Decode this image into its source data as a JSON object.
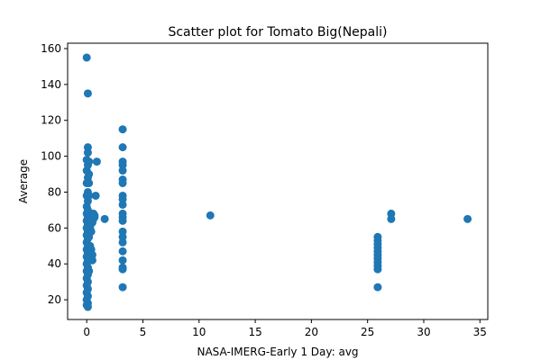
{
  "chart_data": {
    "type": "scatter",
    "title": "Scatter plot for Tomato Big(Nepali)",
    "xlabel": "NASA-IMERG-Early 1 Day: avg",
    "ylabel": "Average",
    "xlim": [
      -1.7,
      35.7
    ],
    "ylim": [
      9,
      163
    ],
    "xticks": [
      0,
      5,
      10,
      15,
      20,
      25,
      30,
      35
    ],
    "yticks": [
      20,
      40,
      60,
      80,
      100,
      120,
      140,
      160
    ],
    "grid": false,
    "marker_color": "#1f77b4",
    "points": [
      [
        0.0,
        155
      ],
      [
        0.1,
        135
      ],
      [
        0.1,
        105
      ],
      [
        0.1,
        102
      ],
      [
        0.0,
        98
      ],
      [
        0.1,
        95
      ],
      [
        0.0,
        92
      ],
      [
        0.1,
        88
      ],
      [
        0.0,
        85
      ],
      [
        0.1,
        80
      ],
      [
        0.0,
        78
      ],
      [
        0.1,
        75
      ],
      [
        0.0,
        72
      ],
      [
        0.1,
        70
      ],
      [
        0.0,
        68
      ],
      [
        0.1,
        66
      ],
      [
        0.0,
        64
      ],
      [
        0.1,
        62
      ],
      [
        0.0,
        60
      ],
      [
        0.1,
        58
      ],
      [
        0.0,
        56
      ],
      [
        0.1,
        54
      ],
      [
        0.0,
        52
      ],
      [
        0.1,
        50
      ],
      [
        0.0,
        48
      ],
      [
        0.1,
        46
      ],
      [
        0.0,
        44
      ],
      [
        0.1,
        42
      ],
      [
        0.0,
        40
      ],
      [
        0.1,
        38
      ],
      [
        0.0,
        36
      ],
      [
        0.1,
        34
      ],
      [
        0.0,
        32
      ],
      [
        0.1,
        30
      ],
      [
        0.0,
        28
      ],
      [
        0.1,
        26
      ],
      [
        0.0,
        24
      ],
      [
        0.1,
        22
      ],
      [
        0.0,
        20
      ],
      [
        0.1,
        18
      ],
      [
        0.0,
        17
      ],
      [
        0.1,
        16
      ],
      [
        0.2,
        97
      ],
      [
        0.2,
        90
      ],
      [
        0.2,
        85
      ],
      [
        0.2,
        78
      ],
      [
        0.3,
        68
      ],
      [
        0.3,
        65
      ],
      [
        0.2,
        62
      ],
      [
        0.3,
        58
      ],
      [
        0.2,
        55
      ],
      [
        0.3,
        50
      ],
      [
        0.2,
        46
      ],
      [
        0.3,
        44
      ],
      [
        0.4,
        68
      ],
      [
        0.4,
        66
      ],
      [
        0.5,
        67
      ],
      [
        0.5,
        63
      ],
      [
        0.4,
        58
      ],
      [
        0.4,
        48
      ],
      [
        0.5,
        45
      ],
      [
        0.5,
        42
      ],
      [
        0.6,
        68
      ],
      [
        0.7,
        67
      ],
      [
        0.7,
        66
      ],
      [
        0.8,
        78
      ],
      [
        0.9,
        97
      ],
      [
        1.6,
        65
      ],
      [
        0.6,
        65
      ],
      [
        0.3,
        60
      ],
      [
        0.4,
        43
      ],
      [
        0.2,
        36
      ],
      [
        3.2,
        115
      ],
      [
        3.2,
        105
      ],
      [
        3.2,
        97
      ],
      [
        3.2,
        95
      ],
      [
        3.2,
        92
      ],
      [
        3.2,
        87
      ],
      [
        3.2,
        85
      ],
      [
        3.2,
        78
      ],
      [
        3.2,
        76
      ],
      [
        3.2,
        73
      ],
      [
        3.2,
        68
      ],
      [
        3.2,
        66
      ],
      [
        3.2,
        64
      ],
      [
        3.2,
        58
      ],
      [
        3.2,
        55
      ],
      [
        3.2,
        52
      ],
      [
        3.2,
        47
      ],
      [
        3.2,
        42
      ],
      [
        3.2,
        38
      ],
      [
        3.2,
        37
      ],
      [
        3.2,
        27
      ],
      [
        11.0,
        67
      ],
      [
        25.9,
        55
      ],
      [
        25.9,
        53
      ],
      [
        25.9,
        51
      ],
      [
        25.9,
        49
      ],
      [
        25.9,
        47
      ],
      [
        25.9,
        45
      ],
      [
        25.9,
        43
      ],
      [
        25.9,
        41
      ],
      [
        25.9,
        39
      ],
      [
        25.9,
        37
      ],
      [
        25.9,
        27
      ],
      [
        27.1,
        68
      ],
      [
        27.1,
        65
      ],
      [
        33.9,
        65
      ]
    ]
  }
}
